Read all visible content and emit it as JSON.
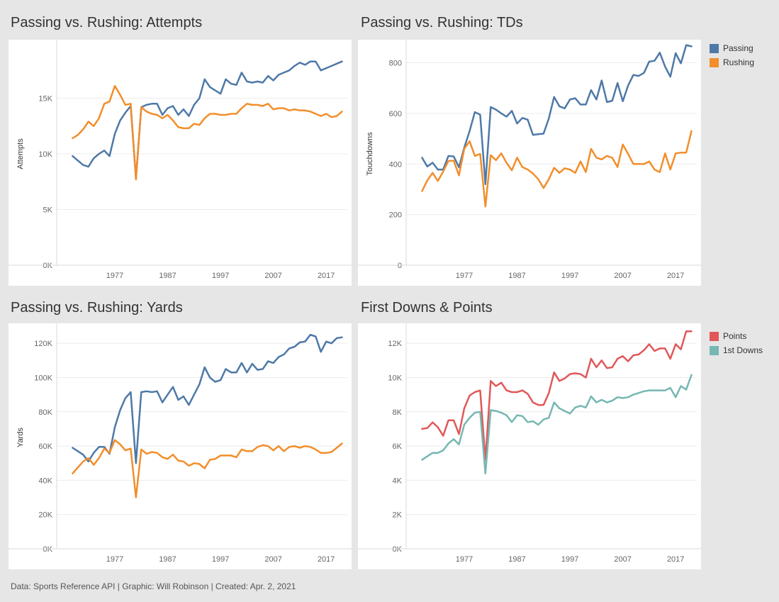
{
  "footer": {
    "text": "Data: Sports Reference API  |  Graphic: Will Robinson  |  Created: Apr. 2, 2021"
  },
  "legends": {
    "top": [
      {
        "label": "Passing",
        "color": "#4e79a7"
      },
      {
        "label": "Rushing",
        "color": "#f28e2b"
      }
    ],
    "bottom": [
      {
        "label": "Points",
        "color": "#e15759"
      },
      {
        "label": "1st Downs",
        "color": "#76b7b2"
      }
    ]
  },
  "chart_data": [
    {
      "id": "attempts",
      "type": "line",
      "title": "Passing vs. Rushing: Attempts",
      "xlabel": "",
      "ylabel": "Attempts",
      "xlim": [
        1966,
        2021
      ],
      "ylim": [
        0,
        20000
      ],
      "x_ticks": [
        1977,
        1987,
        1997,
        2007,
        2017
      ],
      "x_tick_labels": [
        "1977",
        "1987",
        "1997",
        "2007",
        "2017"
      ],
      "y_ticks": [
        0,
        5000,
        10000,
        15000
      ],
      "y_tick_labels": [
        "0K",
        "5K",
        "10K",
        "15K"
      ],
      "x": [
        1969,
        1970,
        1971,
        1972,
        1973,
        1974,
        1975,
        1976,
        1977,
        1978,
        1979,
        1980,
        1981,
        1982,
        1983,
        1984,
        1985,
        1986,
        1987,
        1988,
        1989,
        1990,
        1991,
        1992,
        1993,
        1994,
        1995,
        1996,
        1997,
        1998,
        1999,
        2000,
        2001,
        2002,
        2003,
        2004,
        2005,
        2006,
        2007,
        2008,
        2009,
        2010,
        2011,
        2012,
        2013,
        2014,
        2015,
        2016,
        2017,
        2018,
        2019,
        2020
      ],
      "series": [
        {
          "name": "Passing",
          "color": "#4e79a7",
          "values": [
            9800,
            9400,
            9000,
            8850,
            9600,
            10000,
            10300,
            9800,
            11800,
            13000,
            13700,
            14300,
            7800,
            14200,
            14400,
            14500,
            14500,
            13500,
            14100,
            14300,
            13500,
            14000,
            13400,
            14400,
            15000,
            16700,
            16000,
            15700,
            15400,
            16700,
            16300,
            16200,
            17300,
            16500,
            16400,
            16500,
            16400,
            17000,
            16600,
            17100,
            17300,
            17500,
            17900,
            18200,
            18000,
            18300,
            18300,
            17500,
            17700,
            17900,
            18100,
            18300
          ]
        },
        {
          "name": "Rushing",
          "color": "#f28e2b",
          "values": [
            11400,
            11700,
            12200,
            12900,
            12500,
            13200,
            14500,
            14700,
            16100,
            15300,
            14400,
            14500,
            7700,
            14200,
            13800,
            13600,
            13500,
            13200,
            13500,
            13000,
            12400,
            12300,
            12300,
            12700,
            12600,
            13200,
            13600,
            13600,
            13500,
            13500,
            13600,
            13600,
            14100,
            14500,
            14400,
            14400,
            14300,
            14500,
            14000,
            14100,
            14100,
            13900,
            14000,
            13900,
            13900,
            13800,
            13600,
            13400,
            13600,
            13300,
            13400,
            13800
          ]
        }
      ]
    },
    {
      "id": "tds",
      "type": "line",
      "title": "Passing vs. Rushing: TDs",
      "xlabel": "",
      "ylabel": "Touchdowns",
      "xlim": [
        1966,
        2021
      ],
      "ylim": [
        0,
        880
      ],
      "x_ticks": [
        1977,
        1987,
        1997,
        2007,
        2017
      ],
      "x_tick_labels": [
        "1977",
        "1987",
        "1997",
        "2007",
        "2017"
      ],
      "y_ticks": [
        0,
        200,
        400,
        600,
        800
      ],
      "y_tick_labels": [
        "0",
        "200",
        "400",
        "600",
        "800"
      ],
      "x": [
        1969,
        1970,
        1971,
        1972,
        1973,
        1974,
        1975,
        1976,
        1977,
        1978,
        1979,
        1980,
        1981,
        1982,
        1983,
        1984,
        1985,
        1986,
        1987,
        1988,
        1989,
        1990,
        1991,
        1992,
        1993,
        1994,
        1995,
        1996,
        1997,
        1998,
        1999,
        2000,
        2001,
        2002,
        2003,
        2004,
        2005,
        2006,
        2007,
        2008,
        2009,
        2010,
        2011,
        2012,
        2013,
        2014,
        2015,
        2016,
        2017,
        2018,
        2019,
        2020
      ],
      "series": [
        {
          "name": "Passing",
          "color": "#4e79a7",
          "values": [
            425,
            390,
            405,
            378,
            378,
            432,
            430,
            387,
            465,
            530,
            605,
            595,
            320,
            625,
            615,
            600,
            587,
            610,
            560,
            582,
            575,
            515,
            518,
            520,
            580,
            665,
            628,
            620,
            655,
            660,
            635,
            635,
            692,
            655,
            730,
            645,
            650,
            720,
            648,
            710,
            752,
            748,
            760,
            805,
            808,
            840,
            785,
            745,
            838,
            798,
            870,
            865
          ]
        },
        {
          "name": "Rushing",
          "color": "#f28e2b",
          "values": [
            293,
            335,
            365,
            333,
            370,
            412,
            413,
            355,
            460,
            490,
            432,
            440,
            232,
            435,
            415,
            442,
            405,
            375,
            425,
            388,
            378,
            362,
            340,
            305,
            340,
            385,
            365,
            383,
            378,
            365,
            410,
            368,
            460,
            425,
            418,
            432,
            425,
            388,
            477,
            440,
            400,
            400,
            400,
            410,
            378,
            368,
            442,
            378,
            442,
            445,
            445,
            530
          ]
        }
      ]
    },
    {
      "id": "yards",
      "type": "line",
      "title": "Passing vs. Rushing: Yards",
      "xlabel": "",
      "ylabel": "Yards",
      "xlim": [
        1966,
        2021
      ],
      "ylim": [
        0,
        130000
      ],
      "x_ticks": [
        1977,
        1987,
        1997,
        2007,
        2017
      ],
      "x_tick_labels": [
        "1977",
        "1987",
        "1997",
        "2007",
        "2017"
      ],
      "y_ticks": [
        0,
        20000,
        40000,
        60000,
        80000,
        100000,
        120000
      ],
      "y_tick_labels": [
        "0K",
        "20K",
        "40K",
        "60K",
        "80K",
        "100K",
        "120K"
      ],
      "x": [
        1969,
        1970,
        1971,
        1972,
        1973,
        1974,
        1975,
        1976,
        1977,
        1978,
        1979,
        1980,
        1981,
        1982,
        1983,
        1984,
        1985,
        1986,
        1987,
        1988,
        1989,
        1990,
        1991,
        1992,
        1993,
        1994,
        1995,
        1996,
        1997,
        1998,
        1999,
        2000,
        2001,
        2002,
        2003,
        2004,
        2005,
        2006,
        2007,
        2008,
        2009,
        2010,
        2011,
        2012,
        2013,
        2014,
        2015,
        2016,
        2017,
        2018,
        2019,
        2020
      ],
      "series": [
        {
          "name": "Passing",
          "color": "#4e79a7",
          "values": [
            59000,
            57000,
            55000,
            51000,
            56000,
            59500,
            59500,
            55500,
            71000,
            81000,
            88000,
            91500,
            50000,
            91500,
            92000,
            91500,
            92000,
            85500,
            90000,
            94500,
            87000,
            89000,
            84000,
            90000,
            96000,
            106000,
            100000,
            97500,
            98500,
            105000,
            103000,
            103000,
            108500,
            103000,
            108000,
            104500,
            105000,
            109500,
            108500,
            112000,
            113500,
            117000,
            118000,
            120500,
            121000,
            125000,
            124000,
            115000,
            121000,
            120000,
            123000,
            123500
          ]
        },
        {
          "name": "Rushing",
          "color": "#f28e2b",
          "values": [
            44000,
            47500,
            51000,
            53000,
            49000,
            53000,
            58500,
            56000,
            63500,
            61000,
            57500,
            58500,
            30000,
            58000,
            55500,
            56500,
            56000,
            53500,
            52500,
            55000,
            51500,
            51000,
            48500,
            50000,
            49500,
            47000,
            52000,
            52500,
            54500,
            54500,
            54500,
            53500,
            58000,
            57000,
            57000,
            59500,
            60500,
            60000,
            57500,
            60000,
            57000,
            59500,
            60000,
            59000,
            60000,
            59500,
            58000,
            56000,
            56000,
            56500,
            59000,
            61500
          ]
        }
      ]
    },
    {
      "id": "downs_points",
      "type": "line",
      "title": "First Downs & Points",
      "xlabel": "",
      "ylabel": "",
      "xlim": [
        1966,
        2021
      ],
      "ylim": [
        0,
        13000
      ],
      "x_ticks": [
        1977,
        1987,
        1997,
        2007,
        2017
      ],
      "x_tick_labels": [
        "1977",
        "1987",
        "1997",
        "2007",
        "2017"
      ],
      "y_ticks": [
        0,
        2000,
        4000,
        6000,
        8000,
        10000,
        12000
      ],
      "y_tick_labels": [
        "0K",
        "2K",
        "4K",
        "6K",
        "8K",
        "10K",
        "12K"
      ],
      "x": [
        1969,
        1970,
        1971,
        1972,
        1973,
        1974,
        1975,
        1976,
        1977,
        1978,
        1979,
        1980,
        1981,
        1982,
        1983,
        1984,
        1985,
        1986,
        1987,
        1988,
        1989,
        1990,
        1991,
        1992,
        1993,
        1994,
        1995,
        1996,
        1997,
        1998,
        1999,
        2000,
        2001,
        2002,
        2003,
        2004,
        2005,
        2006,
        2007,
        2008,
        2009,
        2010,
        2011,
        2012,
        2013,
        2014,
        2015,
        2016,
        2017,
        2018,
        2019,
        2020
      ],
      "series": [
        {
          "name": "Points",
          "color": "#e15759",
          "values": [
            7000,
            7050,
            7380,
            7100,
            6600,
            7500,
            7500,
            6700,
            8200,
            8950,
            9150,
            9250,
            5200,
            9800,
            9500,
            9700,
            9250,
            9150,
            9150,
            9250,
            9050,
            8550,
            8400,
            8400,
            9100,
            10300,
            9800,
            9950,
            10200,
            10250,
            10200,
            10000,
            11100,
            10600,
            11000,
            10550,
            10600,
            11100,
            11250,
            10950,
            11300,
            11350,
            11600,
            11950,
            11550,
            11700,
            11700,
            11100,
            11950,
            11650,
            12700,
            12700
          ]
        },
        {
          "name": "1st Downs",
          "color": "#76b7b2",
          "values": [
            5200,
            5400,
            5600,
            5600,
            5750,
            6150,
            6400,
            6100,
            7250,
            7650,
            7950,
            8000,
            4400,
            8100,
            8050,
            7950,
            7800,
            7400,
            7800,
            7750,
            7400,
            7450,
            7250,
            7550,
            7650,
            8550,
            8200,
            8050,
            7900,
            8250,
            8350,
            8250,
            8900,
            8550,
            8700,
            8550,
            8650,
            8850,
            8800,
            8850,
            9000,
            9100,
            9200,
            9250,
            9250,
            9250,
            9250,
            9400,
            8850,
            9500,
            9300,
            10150
          ]
        }
      ]
    }
  ]
}
